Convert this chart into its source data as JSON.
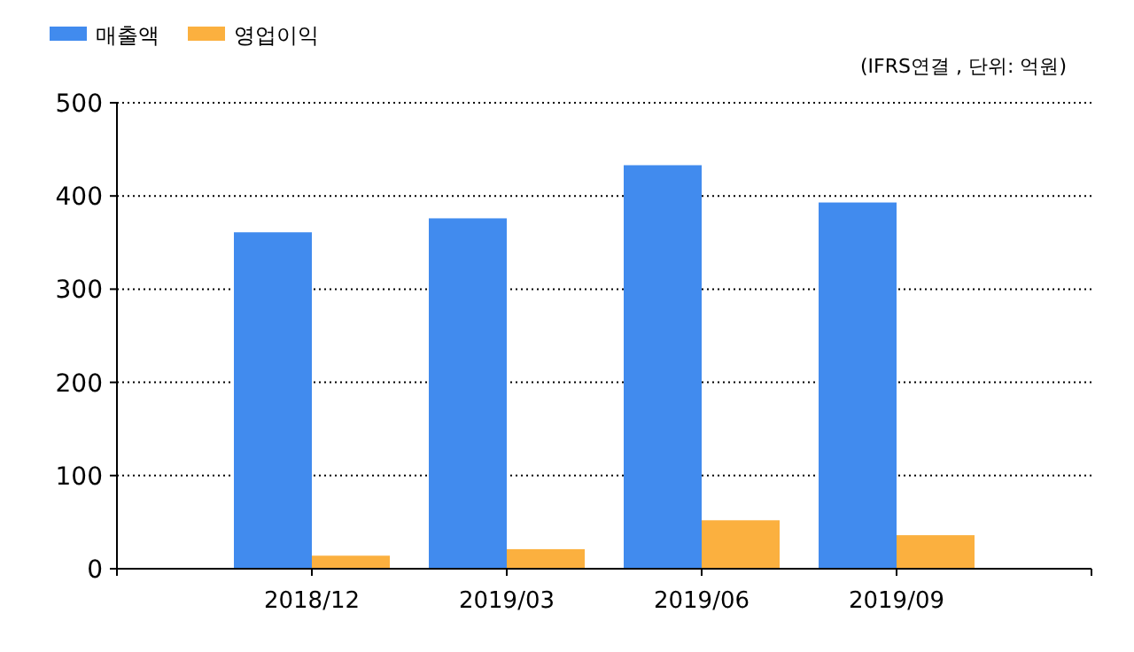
{
  "chart_data": {
    "type": "bar",
    "subtitle": "(IFRS연결 , 단위: 억원)",
    "categories": [
      "2018/12",
      "2019/03",
      "2019/06",
      "2019/09"
    ],
    "series": [
      {
        "name": "매출액",
        "color": "#418bee",
        "values": [
          361,
          376,
          433,
          393
        ]
      },
      {
        "name": "영업이익",
        "color": "#fbb03f",
        "values": [
          14,
          21,
          52,
          36
        ]
      }
    ],
    "ylim": [
      0,
      500
    ],
    "yticks": [
      0,
      100,
      200,
      300,
      400,
      500
    ],
    "grid": "y",
    "legend": "top left"
  }
}
